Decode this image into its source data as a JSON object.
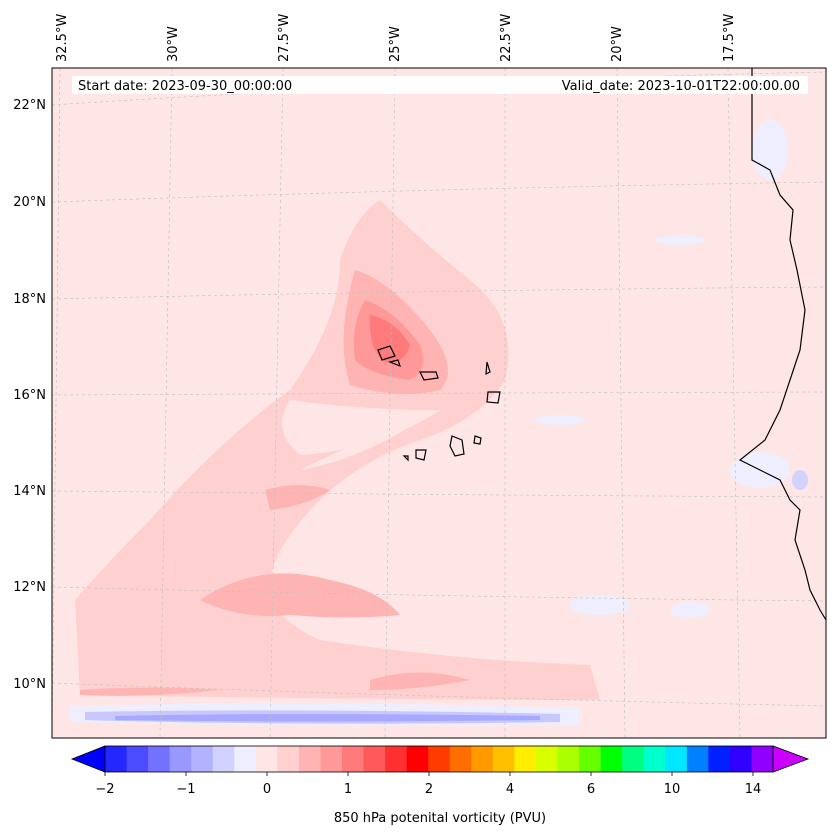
{
  "map": {
    "start_label": "Start date: 2023-09-30_00:00:00",
    "valid_label": "Valid_date: 2023-10-01T22:00:00.00",
    "lon_labels": [
      "32.5°W",
      "30°W",
      "27.5°W",
      "25°W",
      "22.5°W",
      "20°W",
      "17.5°W"
    ],
    "lat_labels": [
      "22°N",
      "20°N",
      "18°N",
      "16°N",
      "14°N",
      "12°N",
      "10°N"
    ],
    "background_color": "#fee6e6",
    "coast_color": "#000000",
    "field": "850 hPa potential vorticity contour fill"
  },
  "colorbar": {
    "label": "850 hPa potenital vorticity (PVU)",
    "ticks": [
      "−2",
      "−1",
      "0",
      "1",
      "2",
      "4",
      "6",
      "10",
      "14"
    ],
    "colors": [
      "#0000ff",
      "#2626ff",
      "#4c4cff",
      "#7272ff",
      "#9898ff",
      "#b2b2ff",
      "#d2d2ff",
      "#eeeeff",
      "#fee6e6",
      "#ffd0d0",
      "#ffb4b4",
      "#ff9898",
      "#ff7a7a",
      "#ff5a5a",
      "#ff3030",
      "#ff0000",
      "#ff3c00",
      "#ff6e00",
      "#ff9a00",
      "#ffc000",
      "#ffee00",
      "#d8ff00",
      "#aaff00",
      "#66ff00",
      "#00ff00",
      "#00ff80",
      "#00ffcc",
      "#00e8ff",
      "#0080ff",
      "#0020ff",
      "#3000ff",
      "#9000ff",
      "#cc00ff"
    ]
  }
}
